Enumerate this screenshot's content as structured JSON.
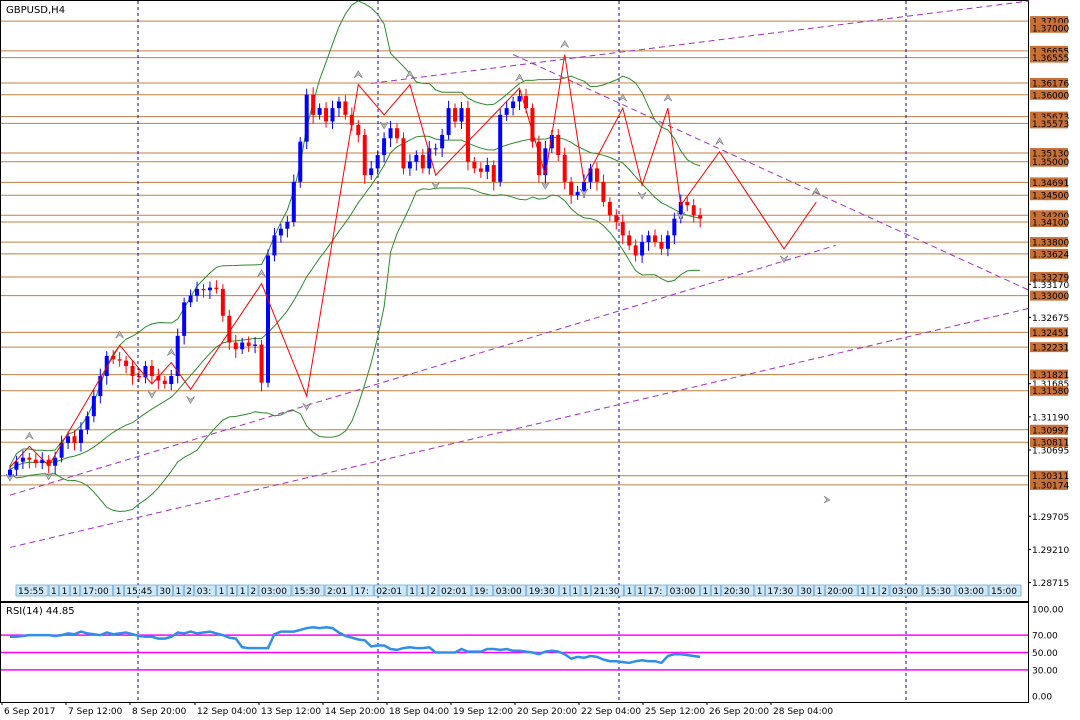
{
  "chart_data": {
    "type": "candlestick",
    "title": "GBPUSD,H4",
    "symbol": "GBPUSD",
    "timeframe": "H4",
    "ylim": [
      1.2844,
      1.374
    ],
    "price_ticks": [
      "1.37100",
      "1.37000",
      "1.36655",
      "1.36555",
      "1.36176",
      "1.36000",
      "1.35673",
      "1.35573",
      "1.35130",
      "1.35000",
      "1.34691",
      "1.34500",
      "1.34200",
      "1.34100",
      "1.33800",
      "1.33624",
      "1.33279",
      "1.33170",
      "1.33000",
      "1.32675",
      "1.32451",
      "1.32231",
      "1.31821",
      "1.31685",
      "1.31580",
      "1.31190",
      "1.30997",
      "1.30811",
      "1.30695",
      "1.30311",
      "1.30174",
      "1.29705",
      "1.29210",
      "1.28715"
    ],
    "level_lines": [
      1.371,
      1.36655,
      1.36555,
      1.36176,
      1.36,
      1.35673,
      1.35573,
      1.3513,
      1.35,
      1.34691,
      1.345,
      1.342,
      1.341,
      1.338,
      1.33624,
      1.33279,
      1.33,
      1.32451,
      1.32231,
      1.31821,
      1.3158,
      1.30997,
      1.30811,
      1.30311,
      1.30174
    ],
    "highlighted_labels": [
      "1.37100",
      "1.37000",
      "1.36655",
      "1.36555",
      "1.36176",
      "1.36000",
      "1.35673",
      "1.35573",
      "1.35130",
      "1.35000",
      "1.34691",
      "1.34500",
      "1.34200",
      "1.34100",
      "1.33800",
      "1.33624",
      "1.33279",
      "1.33000",
      "1.32451",
      "1.32231",
      "1.31821",
      "1.31580",
      "1.30997",
      "1.30811",
      "1.30311",
      "1.30174"
    ],
    "time_labels": [
      "6 Sep 2017",
      "7 Sep 12:00",
      "8 Sep 20:00",
      "12 Sep 04:00",
      "13 Sep 12:00",
      "14 Sep 20:00",
      "18 Sep 04:00",
      "19 Sep 12:00",
      "20 Sep 20:00",
      "22 Sep 04:00",
      "25 Sep 12:00",
      "26 Sep 20:00",
      "28 Sep 04:00"
    ],
    "closes": [
      1.304,
      1.3052,
      1.3058,
      1.3055,
      1.305,
      1.3055,
      1.3046,
      1.3058,
      1.308,
      1.309,
      1.308,
      1.31,
      1.312,
      1.315,
      1.318,
      1.321,
      1.3205,
      1.3203,
      1.3195,
      1.318,
      1.3178,
      1.3195,
      1.318,
      1.3173,
      1.3168,
      1.318,
      1.324,
      1.329,
      1.33,
      1.331,
      1.3308,
      1.3312,
      1.331,
      1.327,
      1.323,
      1.322,
      1.323,
      1.3225,
      1.3227,
      1.317,
      1.336,
      1.339,
      1.34,
      1.341,
      1.347,
      1.353,
      1.36,
      1.357,
      1.358,
      1.356,
      1.358,
      1.359,
      1.357,
      1.3555,
      1.354,
      1.348,
      1.349,
      1.351,
      1.3535,
      1.355,
      1.3535,
      1.349,
      1.35,
      1.351,
      1.349,
      1.352,
      1.352,
      1.354,
      1.358,
      1.356,
      1.358,
      1.35,
      1.349,
      1.3485,
      1.3495,
      1.347,
      1.357,
      1.358,
      1.359,
      1.3598,
      1.358,
      1.353,
      1.348,
      1.352,
      1.354,
      1.351,
      1.347,
      1.345,
      1.3455,
      1.347,
      1.349,
      1.347,
      1.344,
      1.342,
      1.341,
      1.339,
      1.3375,
      1.336,
      1.338,
      1.339,
      1.338,
      1.337,
      1.339,
      1.3415,
      1.344,
      1.3435,
      1.342,
      1.3415
    ],
    "zigzag": [
      {
        "i": 0,
        "p": 1.3044
      },
      {
        "i": 3,
        "p": 1.3075
      },
      {
        "i": 6,
        "p": 1.3046
      },
      {
        "i": 17,
        "p": 1.3226
      },
      {
        "i": 22,
        "p": 1.3168
      },
      {
        "i": 25,
        "p": 1.32
      },
      {
        "i": 28,
        "p": 1.316
      },
      {
        "i": 39,
        "p": 1.3318
      },
      {
        "i": 46,
        "p": 1.315
      },
      {
        "i": 54,
        "p": 1.3615
      },
      {
        "i": 58,
        "p": 1.357
      },
      {
        "i": 62,
        "p": 1.3615
      },
      {
        "i": 66,
        "p": 1.348
      },
      {
        "i": 79,
        "p": 1.361
      },
      {
        "i": 83,
        "p": 1.348
      },
      {
        "i": 86,
        "p": 1.366
      },
      {
        "i": 89,
        "p": 1.347
      },
      {
        "i": 95,
        "p": 1.358
      },
      {
        "i": 98,
        "p": 1.3465
      },
      {
        "i": 102,
        "p": 1.358
      },
      {
        "i": 104,
        "p": 1.3435
      },
      {
        "i": 110,
        "p": 1.3515
      },
      {
        "i": 120,
        "p": 1.337
      },
      {
        "i": 125,
        "p": 1.344
      }
    ],
    "rsi_label": "RSI(14) 44.85",
    "rsi_ticks": [
      "100.00",
      "70.00",
      "50.00",
      "30.00",
      "0.00"
    ],
    "rsi_levels": [
      70,
      50,
      30
    ],
    "rsi_ylim": [
      0,
      100
    ],
    "rsi_values": [
      68,
      68,
      69,
      70,
      70,
      70,
      70,
      69,
      70,
      72,
      71,
      74,
      72,
      71,
      70,
      73,
      71,
      72,
      73,
      71,
      69,
      68,
      68,
      66,
      66,
      68,
      73,
      72,
      74,
      72,
      73,
      74,
      72,
      70,
      67,
      66,
      56,
      55,
      55,
      55,
      55,
      71,
      74,
      74,
      74,
      76,
      78,
      79,
      78,
      79,
      78,
      73,
      69,
      67,
      65,
      64,
      57,
      58,
      58,
      54,
      53,
      55,
      56,
      55,
      55,
      56,
      50,
      50,
      50,
      50,
      54,
      51,
      51,
      51,
      54,
      54,
      53,
      54,
      52,
      52,
      51,
      50,
      48,
      51,
      52,
      51,
      48,
      43,
      45,
      44,
      46,
      45,
      42,
      40,
      40,
      39,
      38,
      40,
      41,
      40,
      40,
      38,
      46,
      48,
      48,
      47,
      46,
      45
    ],
    "timestamp_strip": [
      "15:55",
      "1",
      "1",
      "1",
      "17:00",
      "1",
      "15:45",
      "30",
      "1",
      "2",
      "03:",
      "1",
      "1",
      "1",
      "2",
      "03:00",
      "15:30",
      "2:01",
      "17:",
      "02:01",
      "1",
      "1",
      "2",
      "02:01",
      "19:",
      "03:00",
      "19:30",
      "1",
      "1",
      "1",
      "21:30",
      "1",
      "1",
      "17:",
      "03:00",
      "1",
      "1",
      "20:30",
      "1",
      "17:30",
      "30",
      "1",
      "20:00",
      "1",
      "1",
      "2",
      "03:00",
      "15:30",
      "03:00",
      "15:00"
    ],
    "colors": {
      "bull": "#0000ff",
      "bear": "#ff0000",
      "grid": "#c08040",
      "label_bg": "#c87137",
      "zigzag": "#ff0000",
      "dashed_line": "#a030c0",
      "bollinger": "#2e8b2e",
      "rsi_line": "#2f8fe8",
      "rsi_level": "#ff00ff",
      "session": "#0000ff"
    }
  }
}
